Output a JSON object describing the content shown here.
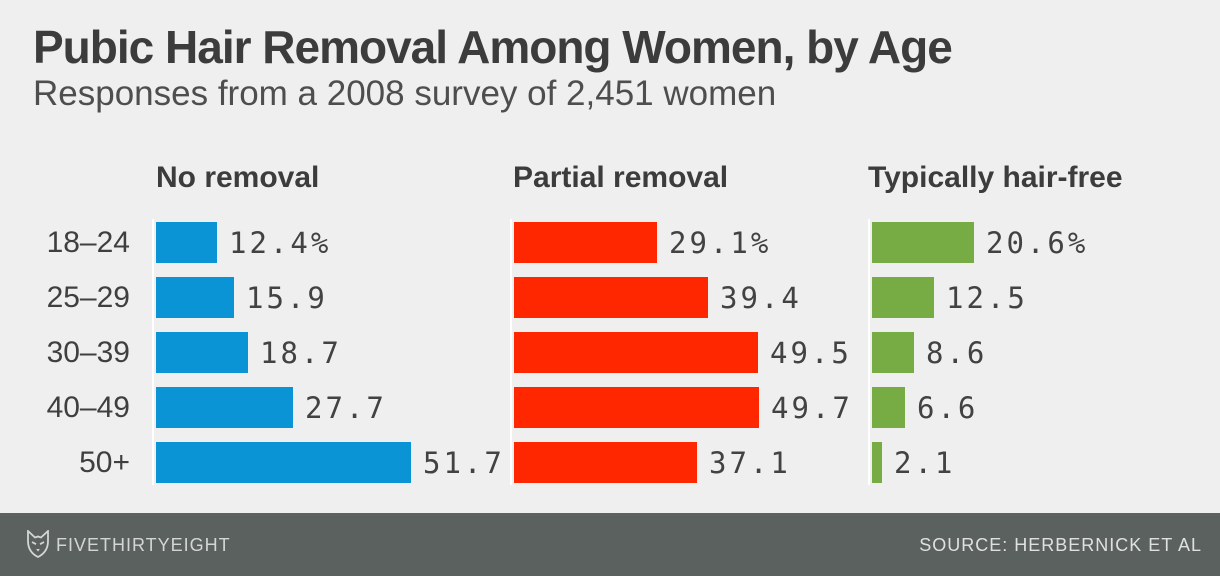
{
  "title": "Pubic Hair Removal Among Women, by Age",
  "subtitle": "Responses from a 2008 survey of 2,451 women",
  "chart_data": {
    "type": "bar",
    "orientation": "horizontal",
    "unit": "percent of respondents",
    "categories": [
      "18–24",
      "25–29",
      "30–39",
      "40–49",
      "50+"
    ],
    "series": [
      {
        "key": "no-removal",
        "name": "No removal",
        "color": "#0a93d5",
        "values": [
          12.4,
          15.9,
          18.7,
          27.7,
          51.7
        ],
        "labels": [
          "12.4%",
          "15.9",
          "18.7",
          "27.7",
          "51.7"
        ]
      },
      {
        "key": "partial-removal",
        "name": "Partial removal",
        "color": "#ff2700",
        "values": [
          29.1,
          39.4,
          49.5,
          49.7,
          37.1
        ],
        "labels": [
          "29.1%",
          "39.4",
          "49.5",
          "49.7",
          "37.1"
        ]
      },
      {
        "key": "typically-hair-free",
        "name": "Typically hair-free",
        "color": "#77ab43",
        "values": [
          20.6,
          12.5,
          8.6,
          6.6,
          2.1
        ],
        "labels": [
          "20.6%",
          "12.5",
          "8.6",
          "6.6",
          "2.1"
        ]
      }
    ],
    "xlim": [
      0,
      55
    ],
    "grid": false,
    "legend_position": "column-headers",
    "value_labels_shown": true
  },
  "footer": {
    "brand": "FIVETHIRTYEIGHT",
    "logo_icon": "fivethirtyeight-fox-icon",
    "source": "SOURCE: HERBERNICK ET AL",
    "background": "#5b615e",
    "text_color": "#d3d6d4"
  },
  "colors": {
    "background": "#efefef",
    "title_text": "#3c3c3c",
    "subtitle_text": "#4e4e4e",
    "value_text": "#424242",
    "age_label_text": "#3f3f3f"
  }
}
